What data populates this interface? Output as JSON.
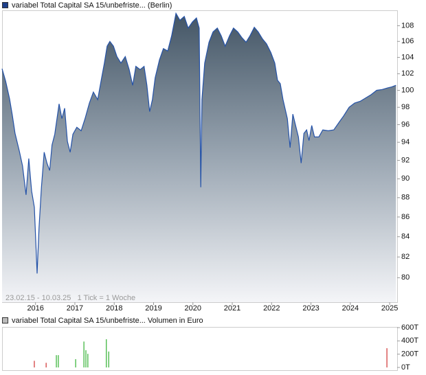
{
  "chart_data": [
    {
      "type": "area",
      "legend": "variabel Total Capital SA 15/unbefriste... (Berlin)",
      "annotation": "23.02.15 - 10.03.25   1 Tick = 1 Woche",
      "log_scale": true,
      "grid": false,
      "x": [
        2015.15,
        2015.24,
        2015.34,
        2015.41,
        2015.48,
        2015.59,
        2015.67,
        2015.76,
        2015.83,
        2015.9,
        2015.97,
        2016.04,
        2016.09,
        2016.15,
        2016.22,
        2016.29,
        2016.36,
        2016.42,
        2016.49,
        2016.6,
        2016.67,
        2016.74,
        2016.81,
        2016.88,
        2016.95,
        2017.05,
        2017.16,
        2017.26,
        2017.37,
        2017.47,
        2017.58,
        2017.68,
        2017.75,
        2017.82,
        2017.89,
        2017.98,
        2018.07,
        2018.17,
        2018.28,
        2018.38,
        2018.47,
        2018.55,
        2018.66,
        2018.76,
        2018.83,
        2018.9,
        2018.97,
        2019.04,
        2019.15,
        2019.25,
        2019.36,
        2019.46,
        2019.57,
        2019.67,
        2019.78,
        2019.88,
        2019.99,
        2020.09,
        2020.16,
        2020.2,
        2020.23,
        2020.3,
        2020.41,
        2020.51,
        2020.62,
        2020.72,
        2020.82,
        2020.93,
        2021.03,
        2021.14,
        2021.24,
        2021.35,
        2021.45,
        2021.56,
        2021.66,
        2021.77,
        2021.87,
        2021.98,
        2022.08,
        2022.15,
        2022.22,
        2022.29,
        2022.4,
        2022.47,
        2022.54,
        2022.61,
        2022.68,
        2022.75,
        2022.82,
        2022.89,
        2022.95,
        2023.02,
        2023.09,
        2023.2,
        2023.3,
        2023.44,
        2023.58,
        2023.72,
        2023.83,
        2023.97,
        2024.11,
        2024.25,
        2024.39,
        2024.53,
        2024.67,
        2024.81,
        2024.95,
        2025.05,
        2025.16
      ],
      "series": [
        {
          "name": "variabel Total Capital SA 15/unbefriste... (Berlin)",
          "color": "#2452a8",
          "values": [
            102.6,
            101.1,
            99.0,
            97.1,
            95.0,
            93.0,
            91.4,
            88.3,
            92.2,
            88.7,
            87.0,
            80.4,
            84.9,
            89.1,
            92.9,
            91.7,
            90.9,
            93.7,
            94.9,
            98.4,
            96.7,
            97.9,
            94.1,
            92.9,
            94.9,
            95.7,
            95.3,
            96.7,
            98.5,
            99.8,
            98.9,
            101.5,
            103.3,
            105.4,
            106.0,
            105.4,
            104.1,
            103.3,
            104.1,
            102.5,
            100.6,
            102.9,
            102.5,
            102.9,
            100.6,
            97.5,
            98.9,
            101.5,
            103.7,
            105.1,
            104.8,
            106.7,
            109.6,
            108.7,
            109.2,
            107.7,
            108.5,
            109.0,
            107.7,
            89.1,
            98.9,
            103.3,
            105.9,
            107.2,
            107.7,
            106.7,
            105.4,
            106.7,
            107.7,
            107.2,
            106.5,
            105.9,
            106.7,
            107.8,
            107.2,
            106.3,
            105.7,
            104.6,
            103.3,
            101.2,
            100.8,
            98.9,
            96.7,
            93.4,
            97.2,
            95.9,
            94.6,
            91.7,
            95.0,
            95.4,
            94.2,
            95.9,
            94.6,
            94.6,
            95.4,
            95.3,
            95.4,
            96.3,
            97.0,
            98.0,
            98.5,
            98.7,
            99.1,
            99.5,
            100.0,
            100.1,
            100.3,
            100.4,
            100.6
          ]
        }
      ],
      "xlim": [
        2015.15,
        2025.19
      ],
      "xticks": [
        2016,
        2017,
        2018,
        2019,
        2020,
        2021,
        2022,
        2023,
        2024,
        2025
      ],
      "ylim": [
        77.7,
        110
      ],
      "yticks": [
        80,
        82,
        84,
        86,
        88,
        90,
        92,
        94,
        96,
        98,
        100,
        102,
        104,
        106,
        108
      ]
    },
    {
      "type": "bar",
      "legend": "variabel Total Capital SA 15/unbefriste... Volumen in Euro",
      "x": [
        2015.97,
        2016.27,
        2016.53,
        2016.58,
        2017.02,
        2017.23,
        2017.28,
        2017.33,
        2017.8,
        2017.86,
        2024.93
      ],
      "series": [
        {
          "name": "variabel Total Capital SA 15/unbefriste... Volumen in Euro",
          "values": [
            100000,
            70000,
            185000,
            185000,
            125000,
            390000,
            260000,
            205000,
            425000,
            240000,
            290000
          ],
          "colors": [
            "#d03030",
            "#d03030",
            "#30b030",
            "#30b030",
            "#30b030",
            "#30b030",
            "#30b030",
            "#30b030",
            "#30b030",
            "#30b030",
            "#d03030"
          ]
        }
      ],
      "xlim": [
        2015.15,
        2025.19
      ],
      "ylim": [
        0,
        600000
      ],
      "yticks": [
        {
          "value": 0,
          "label": "0T"
        },
        {
          "value": 200000,
          "label": "200T"
        },
        {
          "value": 400000,
          "label": "400T"
        },
        {
          "value": 600000,
          "label": "600T"
        }
      ]
    }
  ]
}
